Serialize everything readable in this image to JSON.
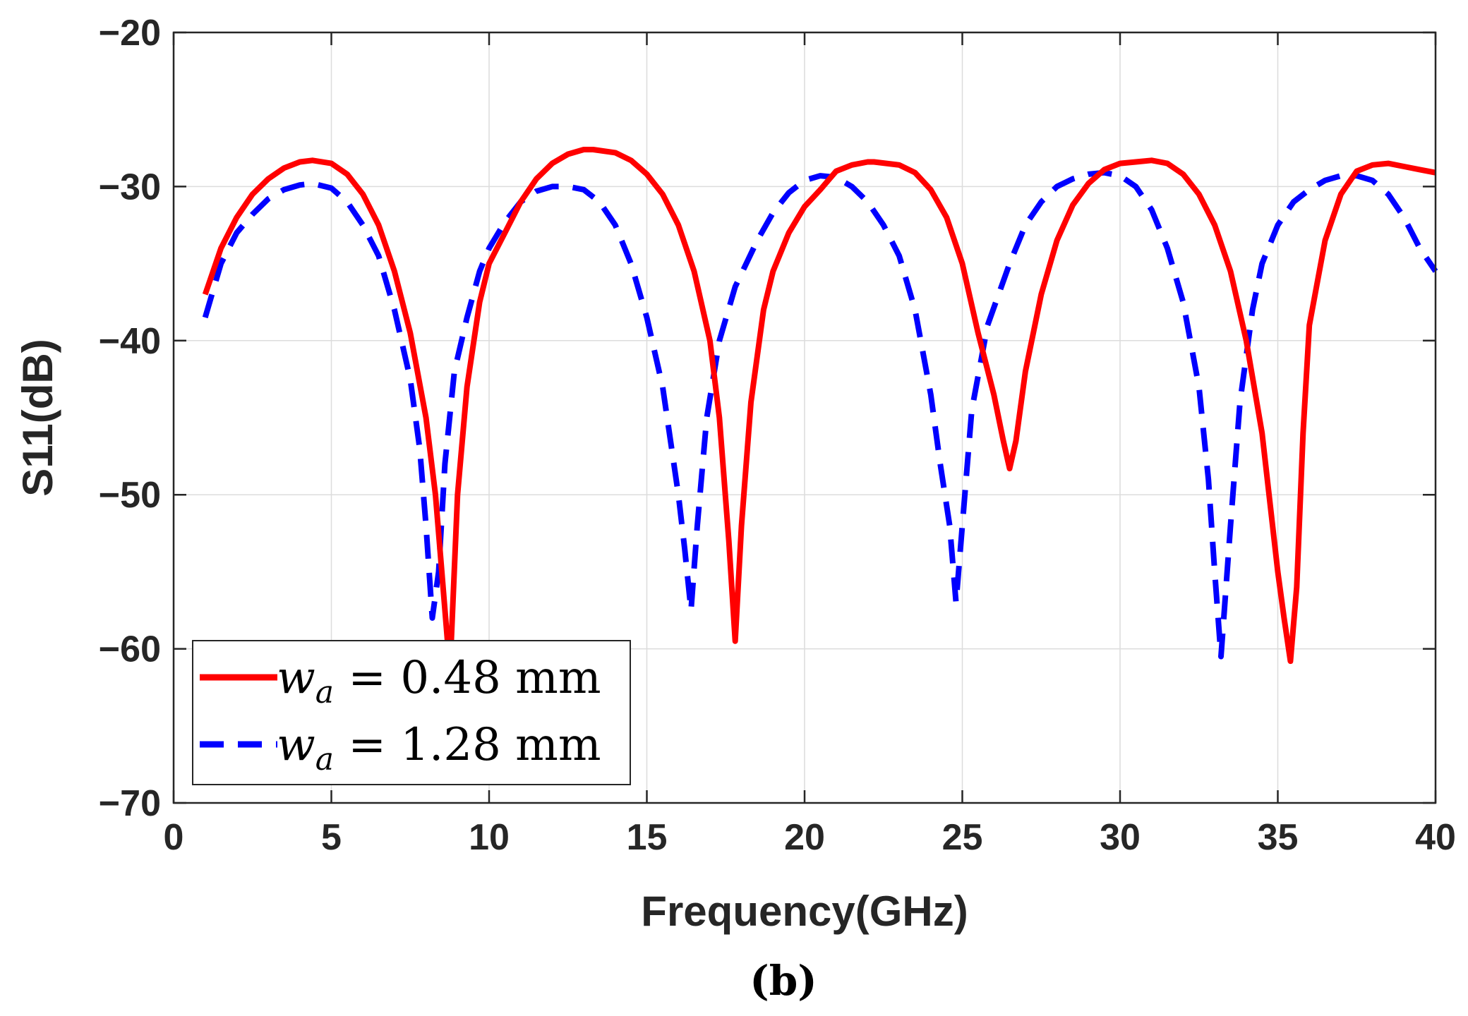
{
  "chart_data": {
    "type": "line",
    "title": "",
    "xlabel": "Frequency(GHz)",
    "ylabel": "S11(dB)",
    "caption": "(b)",
    "xlim": [
      0,
      40
    ],
    "ylim": [
      -70,
      -20
    ],
    "xticks": [
      0,
      5,
      10,
      15,
      20,
      25,
      30,
      35,
      40
    ],
    "yticks": [
      -20,
      -30,
      -40,
      -50,
      -60,
      -70
    ],
    "xtick_labels": [
      "0",
      "5",
      "10",
      "15",
      "20",
      "25",
      "30",
      "35",
      "40"
    ],
    "ytick_labels": [
      "−20",
      "−30",
      "−40",
      "−50",
      "−60",
      "−70"
    ],
    "grid": true,
    "legend_position": "bottom-left",
    "series": [
      {
        "name": "w_a = 0.48 mm",
        "legend_var": "w",
        "legend_sub": "a",
        "legend_rest": " = 0.48 mm",
        "color": "#ff0000",
        "style": "solid",
        "x": [
          1,
          1.5,
          2,
          2.5,
          3,
          3.5,
          4,
          4.4,
          5,
          5.5,
          6,
          6.5,
          7,
          7.5,
          8,
          8.3,
          8.5,
          8.7,
          8.8,
          9,
          9.3,
          9.7,
          10,
          10.5,
          11,
          11.5,
          12,
          12.5,
          13,
          13.3,
          14,
          14.5,
          15,
          15.5,
          16,
          16.5,
          17,
          17.3,
          17.6,
          17.8,
          18,
          18.3,
          18.7,
          19,
          19.5,
          20,
          20.5,
          21,
          21.5,
          22,
          22.2,
          23,
          23.5,
          24,
          24.5,
          25,
          25.5,
          26,
          26.3,
          26.5,
          26.7,
          27,
          27.5,
          28,
          28.5,
          29,
          29.5,
          30,
          30.5,
          31,
          31.5,
          32,
          32.5,
          33,
          33.5,
          34,
          34.5,
          35,
          35.2,
          35.4,
          35.6,
          35.8,
          36,
          36.5,
          37,
          37.5,
          38,
          38.5,
          39,
          39.5,
          40
        ],
        "y": [
          -37,
          -34,
          -32,
          -30.5,
          -29.5,
          -28.8,
          -28.4,
          -28.3,
          -28.5,
          -29.2,
          -30.5,
          -32.5,
          -35.5,
          -39.5,
          -45,
          -50,
          -55,
          -60,
          -59.5,
          -50,
          -43,
          -37.5,
          -35,
          -33,
          -31,
          -29.5,
          -28.5,
          -27.9,
          -27.6,
          -27.6,
          -27.8,
          -28.3,
          -29.2,
          -30.5,
          -32.5,
          -35.5,
          -40,
          -45,
          -53,
          -59.5,
          -52,
          -44,
          -38,
          -35.5,
          -33,
          -31.3,
          -30.2,
          -29,
          -28.6,
          -28.4,
          -28.4,
          -28.6,
          -29.1,
          -30.2,
          -32,
          -35,
          -39.5,
          -43.5,
          -46.5,
          -48.3,
          -46.5,
          -42,
          -37,
          -33.5,
          -31.2,
          -29.8,
          -28.9,
          -28.5,
          -28.4,
          -28.3,
          -28.5,
          -29.2,
          -30.5,
          -32.5,
          -35.5,
          -40,
          -46,
          -55,
          -58,
          -60.8,
          -56,
          -46,
          -39,
          -33.5,
          -30.5,
          -29,
          -28.6,
          -28.5,
          -28.7,
          -28.9,
          -29.1
        ]
      },
      {
        "name": "w_a = 1.28 mm",
        "legend_var": "w",
        "legend_sub": "a",
        "legend_rest": " = 1.28 mm",
        "color": "#0000ff",
        "style": "dashed",
        "x": [
          1,
          1.5,
          2,
          2.5,
          3,
          3.5,
          4,
          4.4,
          5,
          5.5,
          6,
          6.5,
          7,
          7.5,
          7.8,
          8,
          8.2,
          8.4,
          8.6,
          8.9,
          9.3,
          9.7,
          10,
          10.5,
          11,
          11.5,
          12,
          12.5,
          13,
          13.5,
          14,
          14.5,
          15,
          15.5,
          16,
          16.2,
          16.4,
          16.6,
          16.9,
          17.3,
          17.8,
          18.5,
          19,
          19.5,
          20,
          20.5,
          21,
          21.5,
          22,
          22.5,
          23,
          23.5,
          24,
          24.3,
          24.6,
          24.8,
          25,
          25.3,
          25.8,
          26.5,
          27,
          27.5,
          28,
          28.5,
          29,
          29.5,
          30,
          30.5,
          31,
          31.5,
          32,
          32.5,
          32.8,
          33,
          33.2,
          33.5,
          33.8,
          34.2,
          34.5,
          35,
          35.5,
          36,
          36.5,
          37,
          37.5,
          38,
          38.5,
          39,
          39.5,
          40
        ],
        "y": [
          -38.5,
          -35,
          -33,
          -31.8,
          -30.8,
          -30.2,
          -29.9,
          -29.8,
          -30.1,
          -31,
          -32.5,
          -34.5,
          -38,
          -42.5,
          -47,
          -52,
          -58,
          -55,
          -48,
          -42,
          -38.5,
          -35.5,
          -34,
          -32.3,
          -31,
          -30.3,
          -30,
          -30,
          -30.2,
          -31,
          -32.5,
          -35,
          -38.5,
          -43,
          -50,
          -53.5,
          -57.5,
          -52,
          -45,
          -40,
          -36.5,
          -33.5,
          -31.7,
          -30.4,
          -29.6,
          -29.3,
          -29.4,
          -30,
          -31,
          -32.5,
          -34.5,
          -38,
          -43.5,
          -48,
          -52,
          -57,
          -52,
          -44.5,
          -39,
          -35,
          -32.5,
          -31,
          -30,
          -29.5,
          -29.2,
          -29.1,
          -29.3,
          -30,
          -31.5,
          -34,
          -37.5,
          -43,
          -49,
          -55,
          -60.5,
          -52,
          -44,
          -38,
          -35,
          -32.5,
          -31,
          -30.2,
          -29.6,
          -29.3,
          -29.3,
          -29.6,
          -30.5,
          -32,
          -34,
          -35.5
        ]
      }
    ]
  }
}
